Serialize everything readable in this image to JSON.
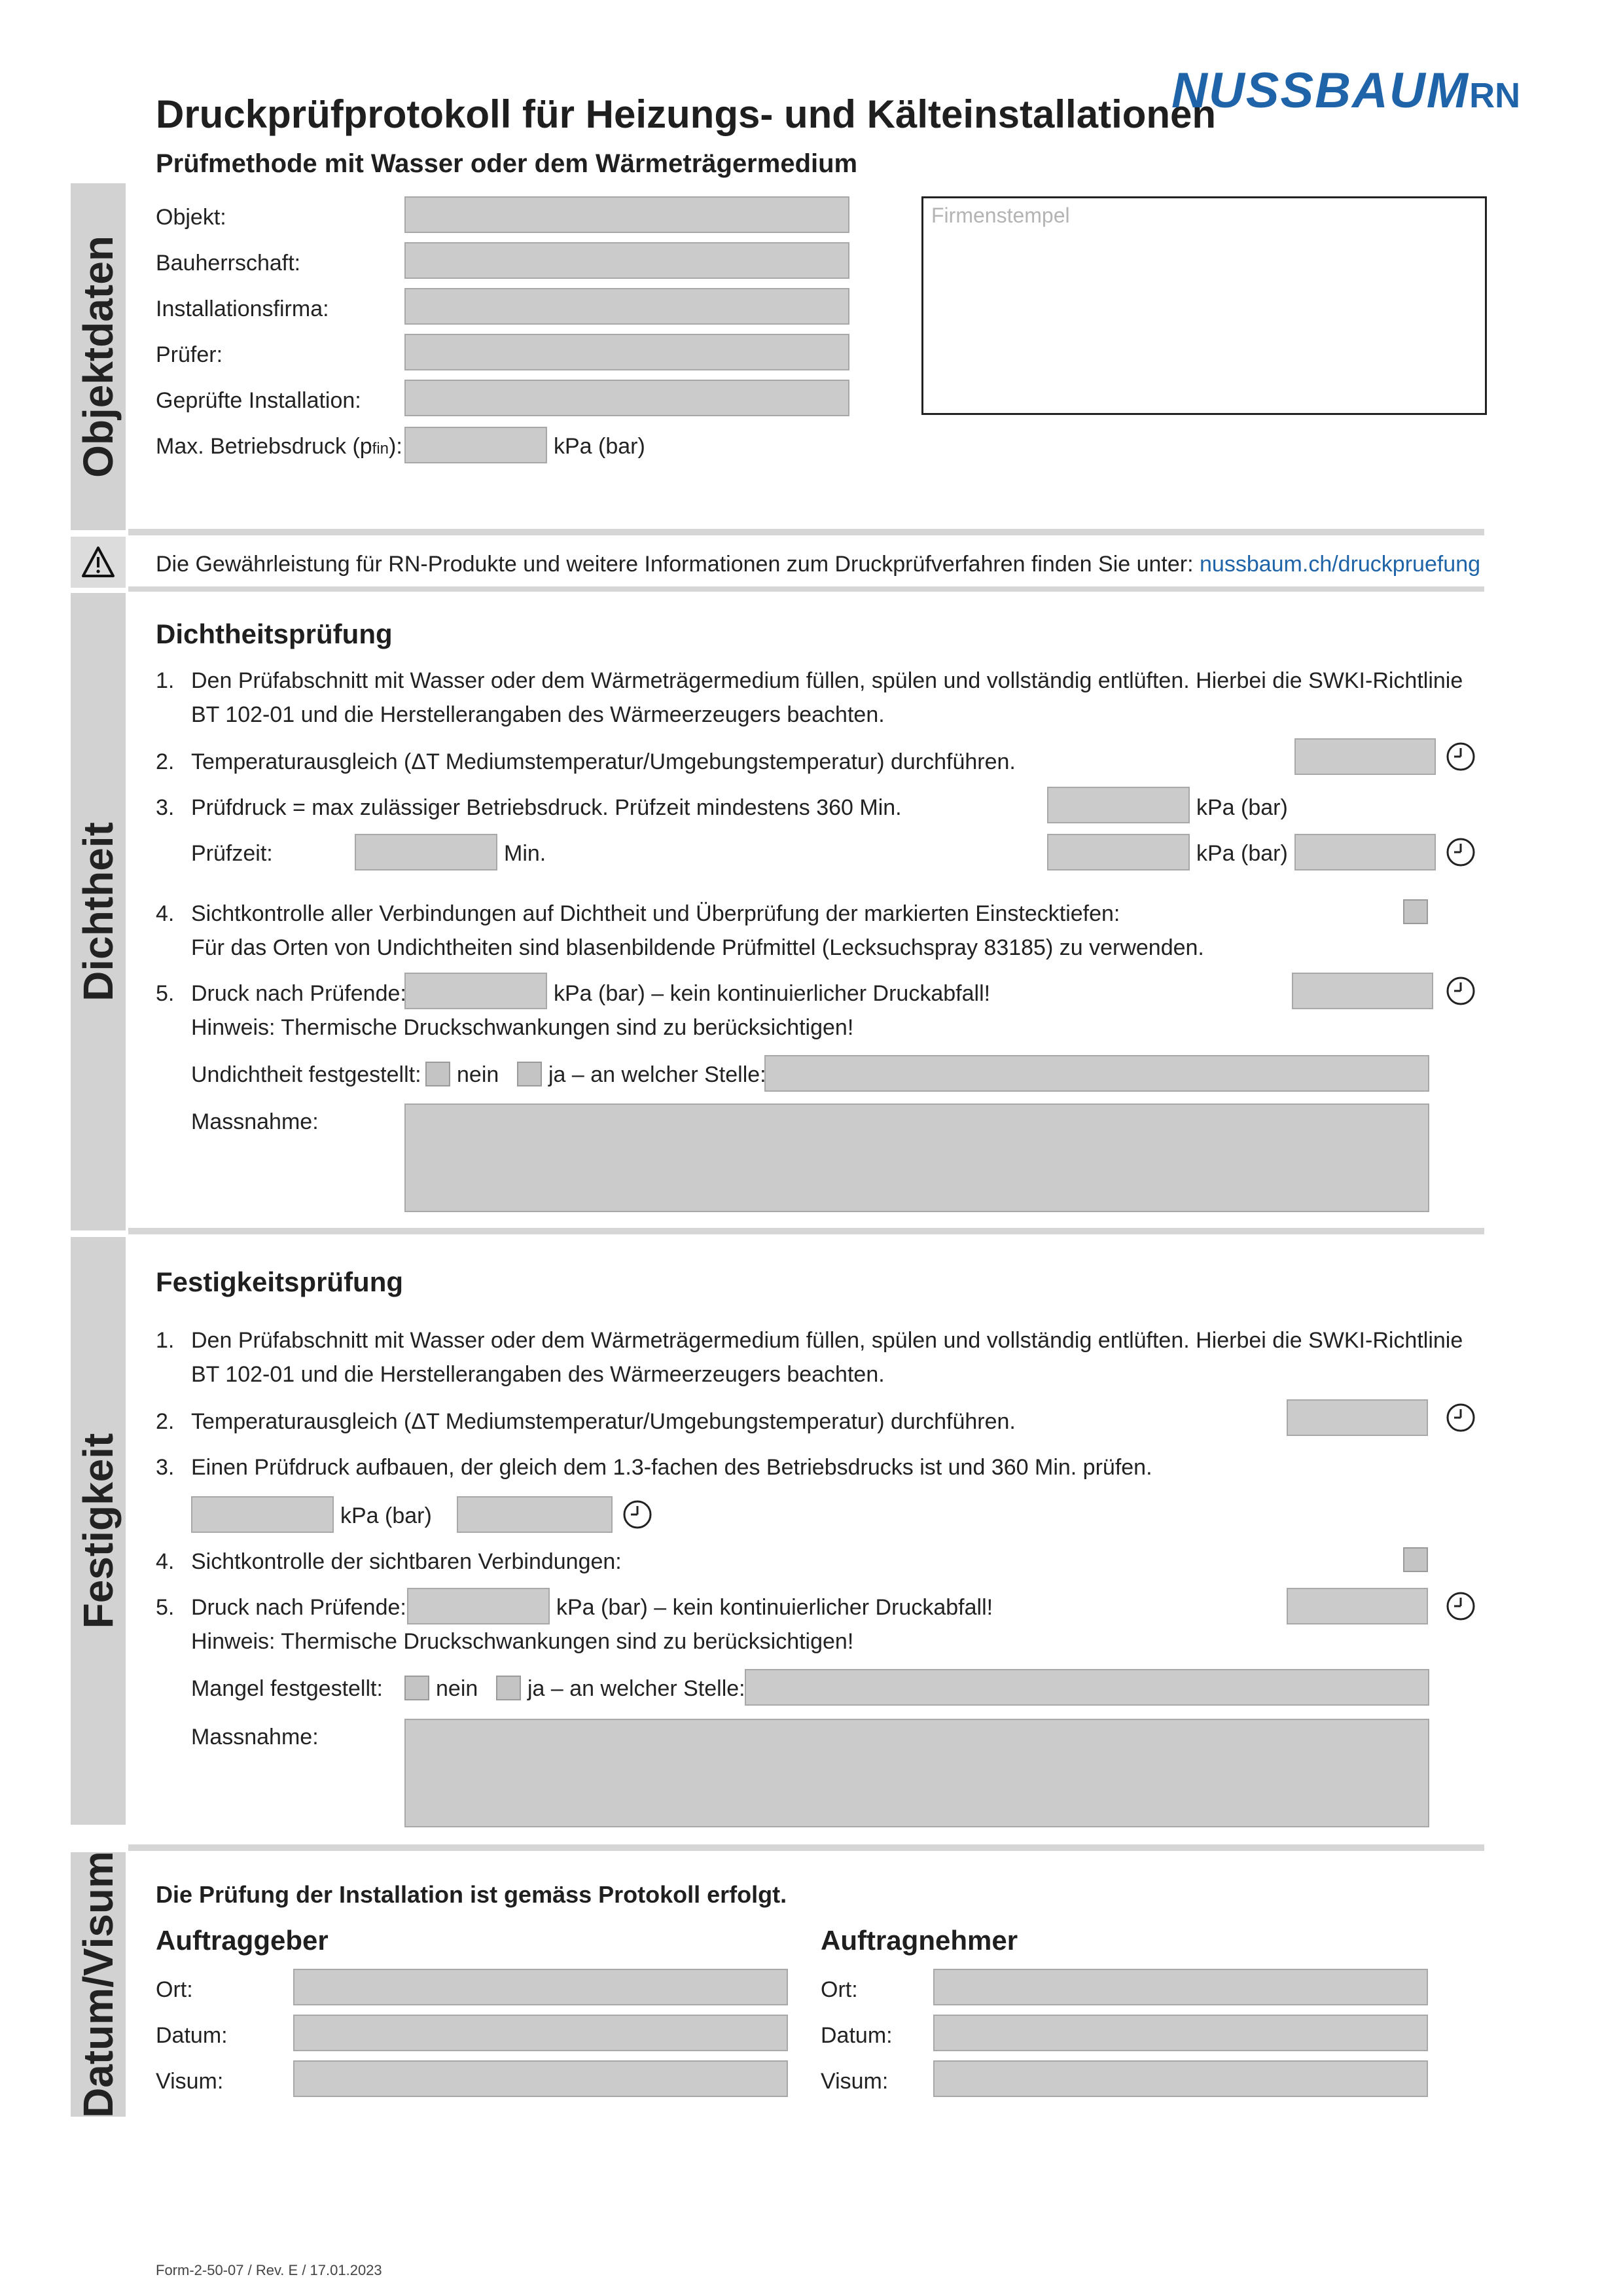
{
  "header": {
    "title": "Druckprüfprotokoll für Heizungs- und Kälteinstallationen",
    "subtitle": "Prüfmethode mit Wasser oder dem Wärmeträgermedium",
    "brand_main": "NUSSBAUM",
    "brand_suffix": "RN",
    "brand_color": "#1f64a8"
  },
  "sections": {
    "objektdaten": "Objektdaten",
    "dichtheit": "Dichtheit",
    "festigkeit": "Festigkeit",
    "datum_visum": "Datum/Visum"
  },
  "objektdaten": {
    "objekt": "Objekt:",
    "bauherrschaft": "Bauherrschaft:",
    "installationsfirma": "Installationsfirma:",
    "pruefer": "Prüfer:",
    "gepruefte_installation": "Geprüfte Installation:",
    "max_betriebsdruck_a": "Max. Betriebsdruck (p",
    "max_betriebsdruck_sub": "fin",
    "max_betriebsdruck_b": "):",
    "unit": "kPa (bar)",
    "stamp_label": "Firmenstempel"
  },
  "notice": {
    "icon": "warning-icon",
    "text": "Die Gewährleistung für RN-Produkte und weitere Informationen zum Druckprüfverfahren finden Sie unter: ",
    "link": "nussbaum.ch/druckpruefung"
  },
  "dichtheit": {
    "heading": "Dichtheitsprüfung",
    "s1_num": "1.",
    "s1_line1": "Den Prüfabschnitt mit Wasser oder dem Wärmeträgermedium füllen, spülen und vollständig entlüften. Hierbei die SWKI-Richtlinie",
    "s1_line2": "BT 102-01 und die Herstellerangaben des Wärmeerzeugers beachten.",
    "s2_num": "2.",
    "s2": "Temperaturausgleich (ΔT Mediumstemperatur/Umgebungstemperatur) durchführen.",
    "s3_num": "3.",
    "s3": "Prüfdruck = max zulässiger Betriebsdruck. Prüfzeit mindestens 360 Min.",
    "s3_unit": "kPa (bar)",
    "pruefzeit_label": "Prüfzeit:",
    "pruefzeit_unit": "Min.",
    "s3_unit2": "kPa (bar)",
    "s4_num": "4.",
    "s4_line1": "Sichtkontrolle aller Verbindungen auf Dichtheit und Überprüfung der markierten Einstecktiefen:",
    "s4_line2": "Für das Orten von Undichtheiten sind blasenbildende Prüfmittel (Lecksuchspray 83185) zu verwenden.",
    "s5_num": "5.",
    "s5_label": "Druck nach Prüfende:",
    "s5_text": "kPa (bar) – kein kontinuierlicher Druckabfall!",
    "s5_hint": "Hinweis: Thermische Druckschwankungen sind zu berücksichtigen!",
    "leak_label": "Undichtheit festgestellt:",
    "nein": "nein",
    "ja": "ja – an welcher Stelle:",
    "massnahme": "Massnahme:"
  },
  "festigkeit": {
    "heading": "Festigkeitsprüfung",
    "s1_num": "1.",
    "s1_line1": "Den Prüfabschnitt mit Wasser oder dem Wärmeträgermedium füllen, spülen und vollständig entlüften. Hierbei die SWKI-Richtlinie",
    "s1_line2": "BT 102-01 und die Herstellerangaben des Wärmeerzeugers beachten.",
    "s2_num": "2.",
    "s2": "Temperaturausgleich (ΔT Mediumstemperatur/Umgebungstemperatur) durchführen.",
    "s3_num": "3.",
    "s3": "Einen Prüfdruck aufbauen, der gleich dem 1.3-fachen des Betriebsdrucks ist und 360 Min. prüfen.",
    "s3_unit": "kPa (bar)",
    "s4_num": "4.",
    "s4": "Sichtkontrolle der sichtbaren Verbindungen:",
    "s5_num": "5.",
    "s5_label": "Druck nach Prüfende:",
    "s5_text": "kPa (bar) – kein kontinuierlicher Druckabfall!",
    "s5_hint": "Hinweis: Thermische Druckschwankungen sind zu berücksichtigen!",
    "defect_label": "Mangel festgestellt:",
    "nein": "nein",
    "ja": "ja – an welcher Stelle:",
    "massnahme": "Massnahme:"
  },
  "signoff": {
    "statement": "Die Prüfung der Installation ist gemäss Protokoll erfolgt.",
    "auftraggeber": "Auftraggeber",
    "auftragnehmer": "Auftragnehmer",
    "ort": "Ort:",
    "datum": "Datum:",
    "visum": "Visum:"
  },
  "footer": {
    "form_id": "Form-2-50-07 / Rev. E / 17.01.2023"
  }
}
